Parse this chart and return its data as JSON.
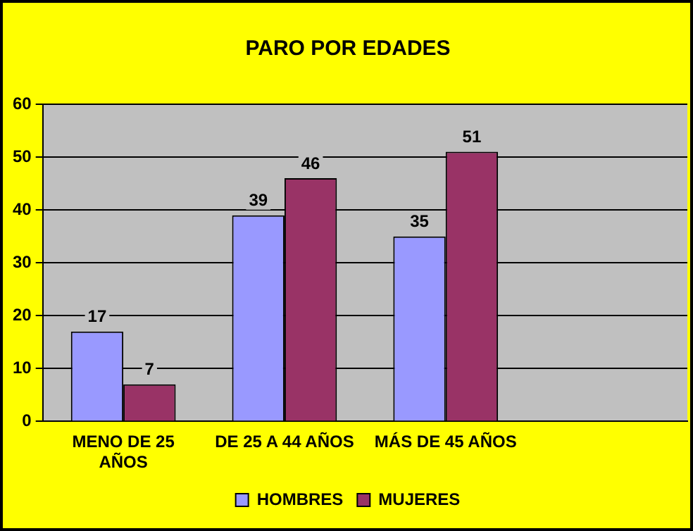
{
  "chart_data": {
    "type": "bar",
    "title": "PARO POR EDADES",
    "categories": [
      "MENO DE 25 AÑOS",
      "DE 25 A 44 AÑOS",
      "MÁS DE 45 AÑOS",
      null
    ],
    "series": [
      {
        "name": "HOMBRES",
        "color": "#9999ff",
        "values": [
          17,
          39,
          35,
          null
        ]
      },
      {
        "name": "MUJERES",
        "color": "#993366",
        "values": [
          7,
          46,
          51,
          null
        ]
      }
    ],
    "ylim": [
      0,
      60
    ],
    "yticks": [
      0,
      10,
      20,
      30,
      40,
      50,
      60
    ],
    "grid": "y",
    "legend": "bottom",
    "data_labels": true
  }
}
